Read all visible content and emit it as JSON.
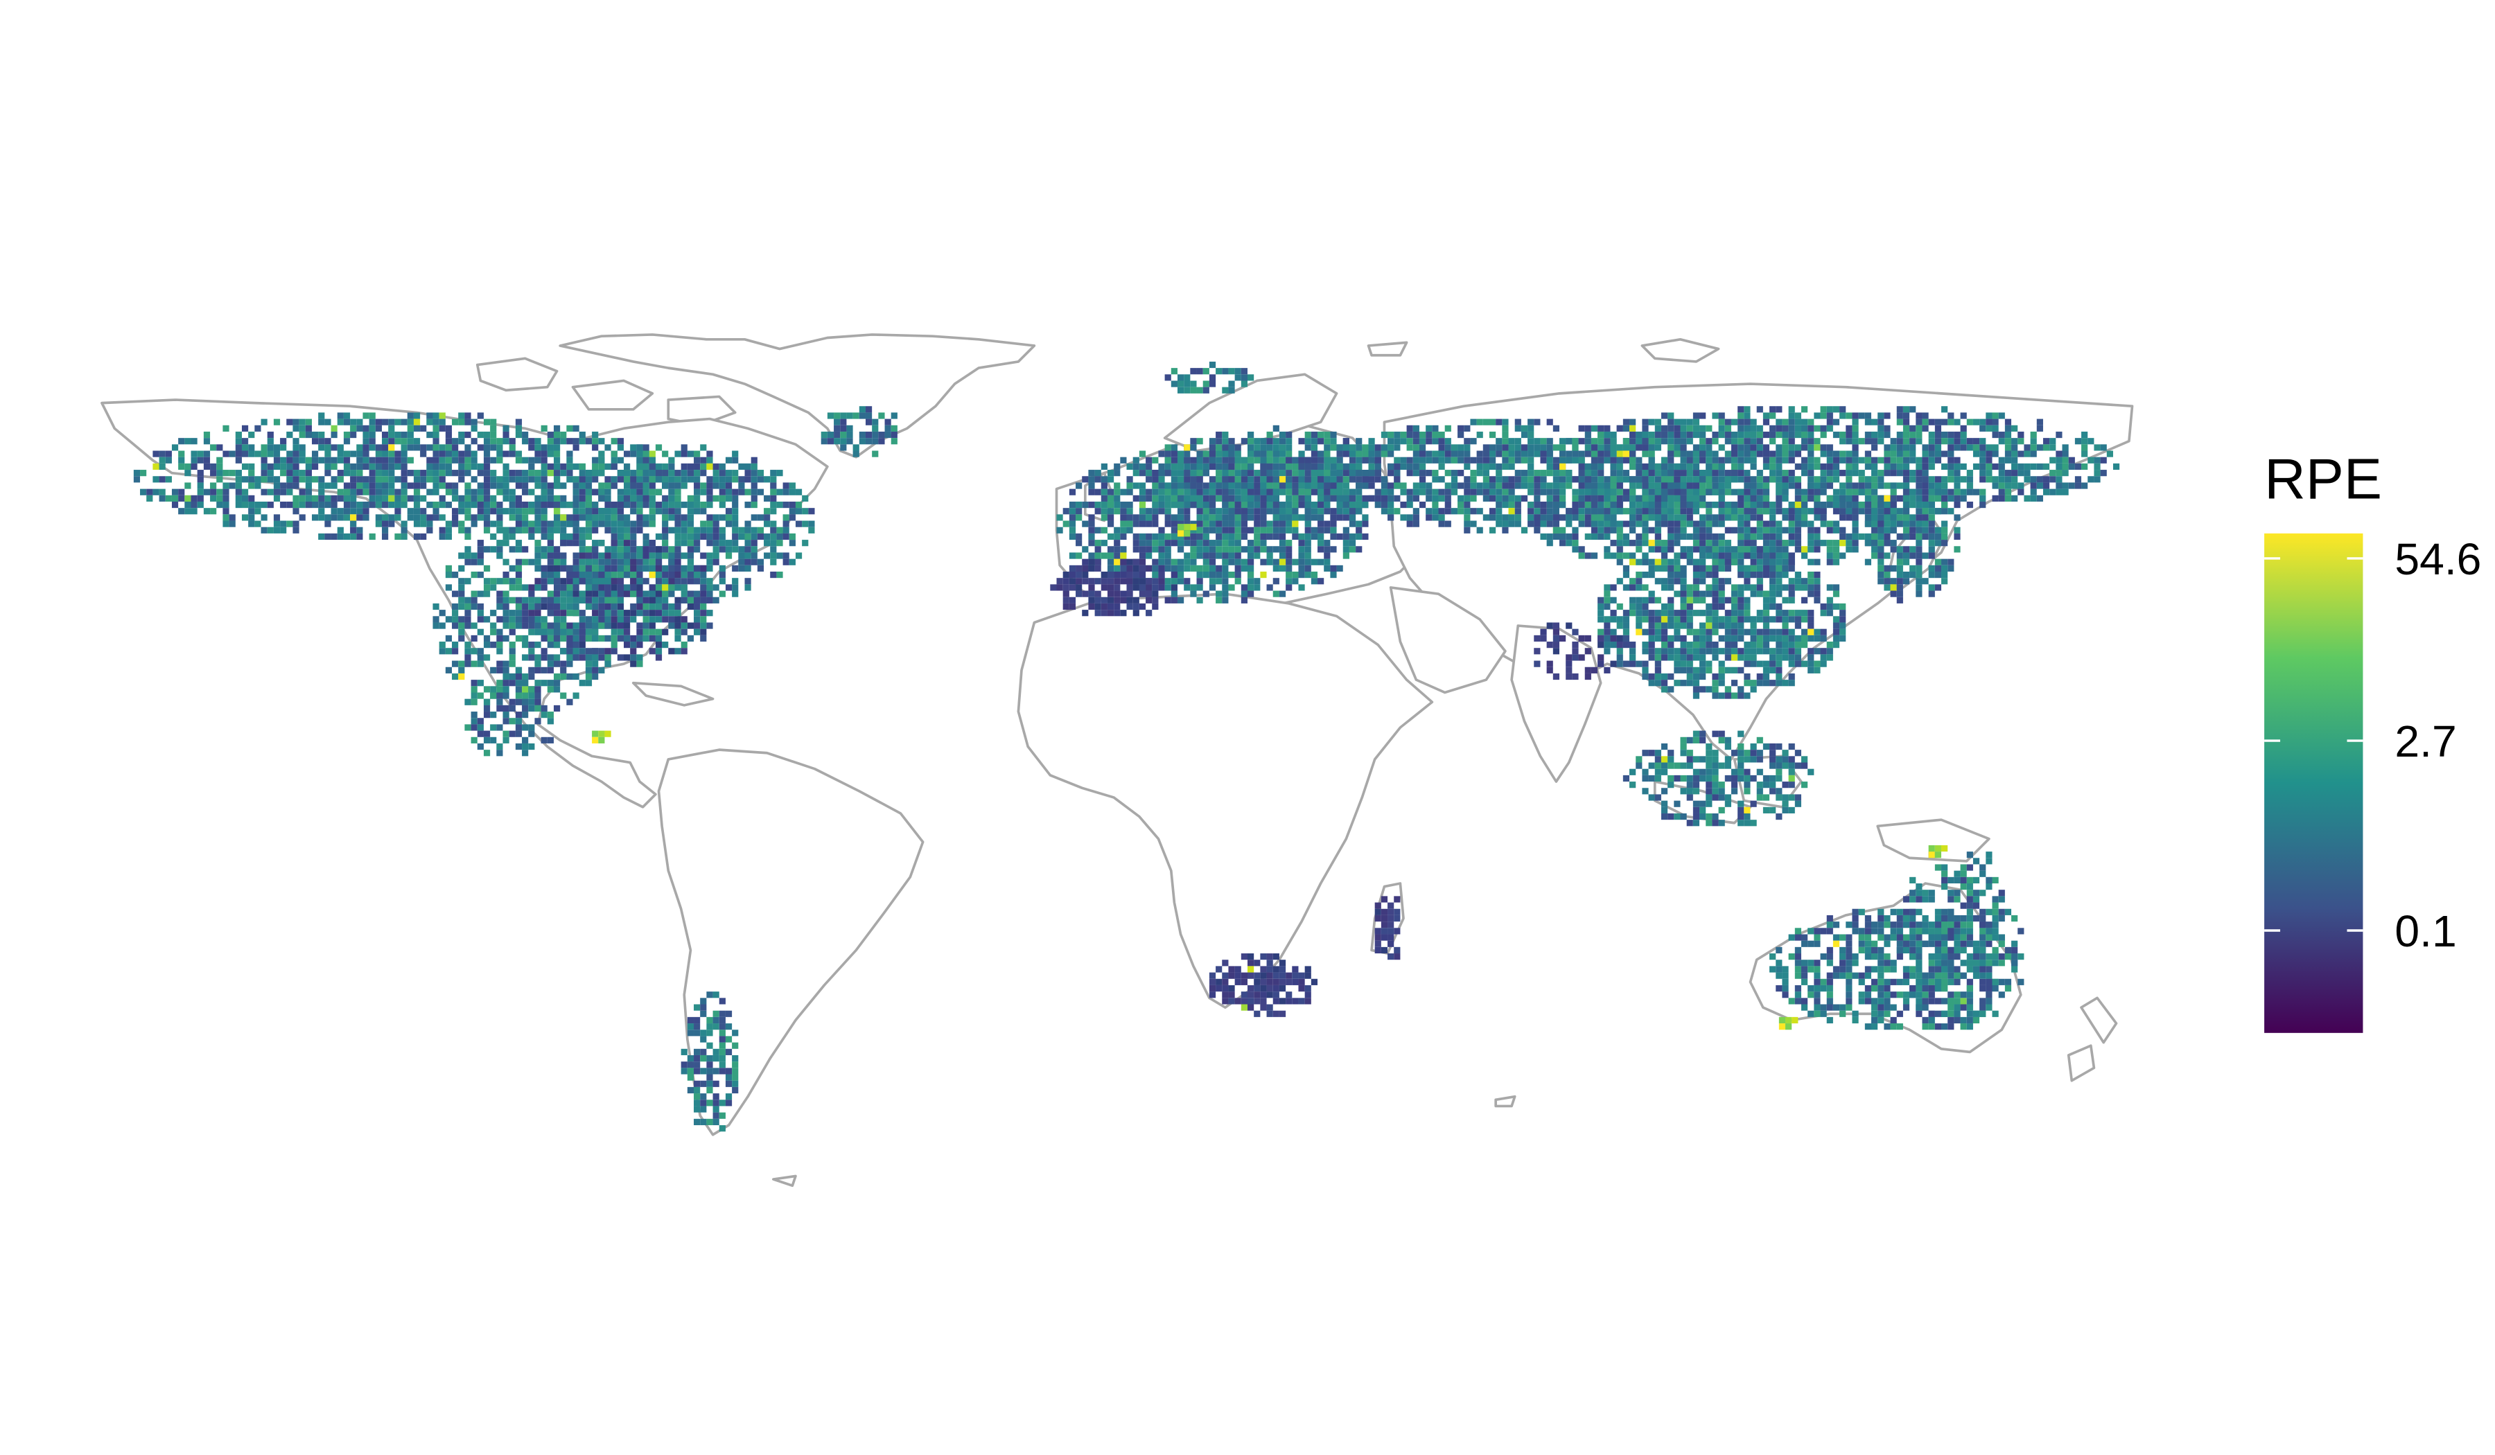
{
  "legend": {
    "title": "RPE",
    "ticks": [
      {
        "label": "54.6",
        "frac": 0.95
      },
      {
        "label": "2.7",
        "frac": 0.585
      },
      {
        "label": "0.1",
        "frac": 0.205
      }
    ],
    "colormap": [
      "#440154",
      "#3b528b",
      "#21918c",
      "#5ec962",
      "#fde725"
    ],
    "colormap_name": "viridis"
  },
  "colors": {
    "country_stroke": "#a8a8a8",
    "background": "#ffffff",
    "low": "#3b4a8a",
    "mid": "#2a7f8e",
    "high": "#fde725"
  }
}
